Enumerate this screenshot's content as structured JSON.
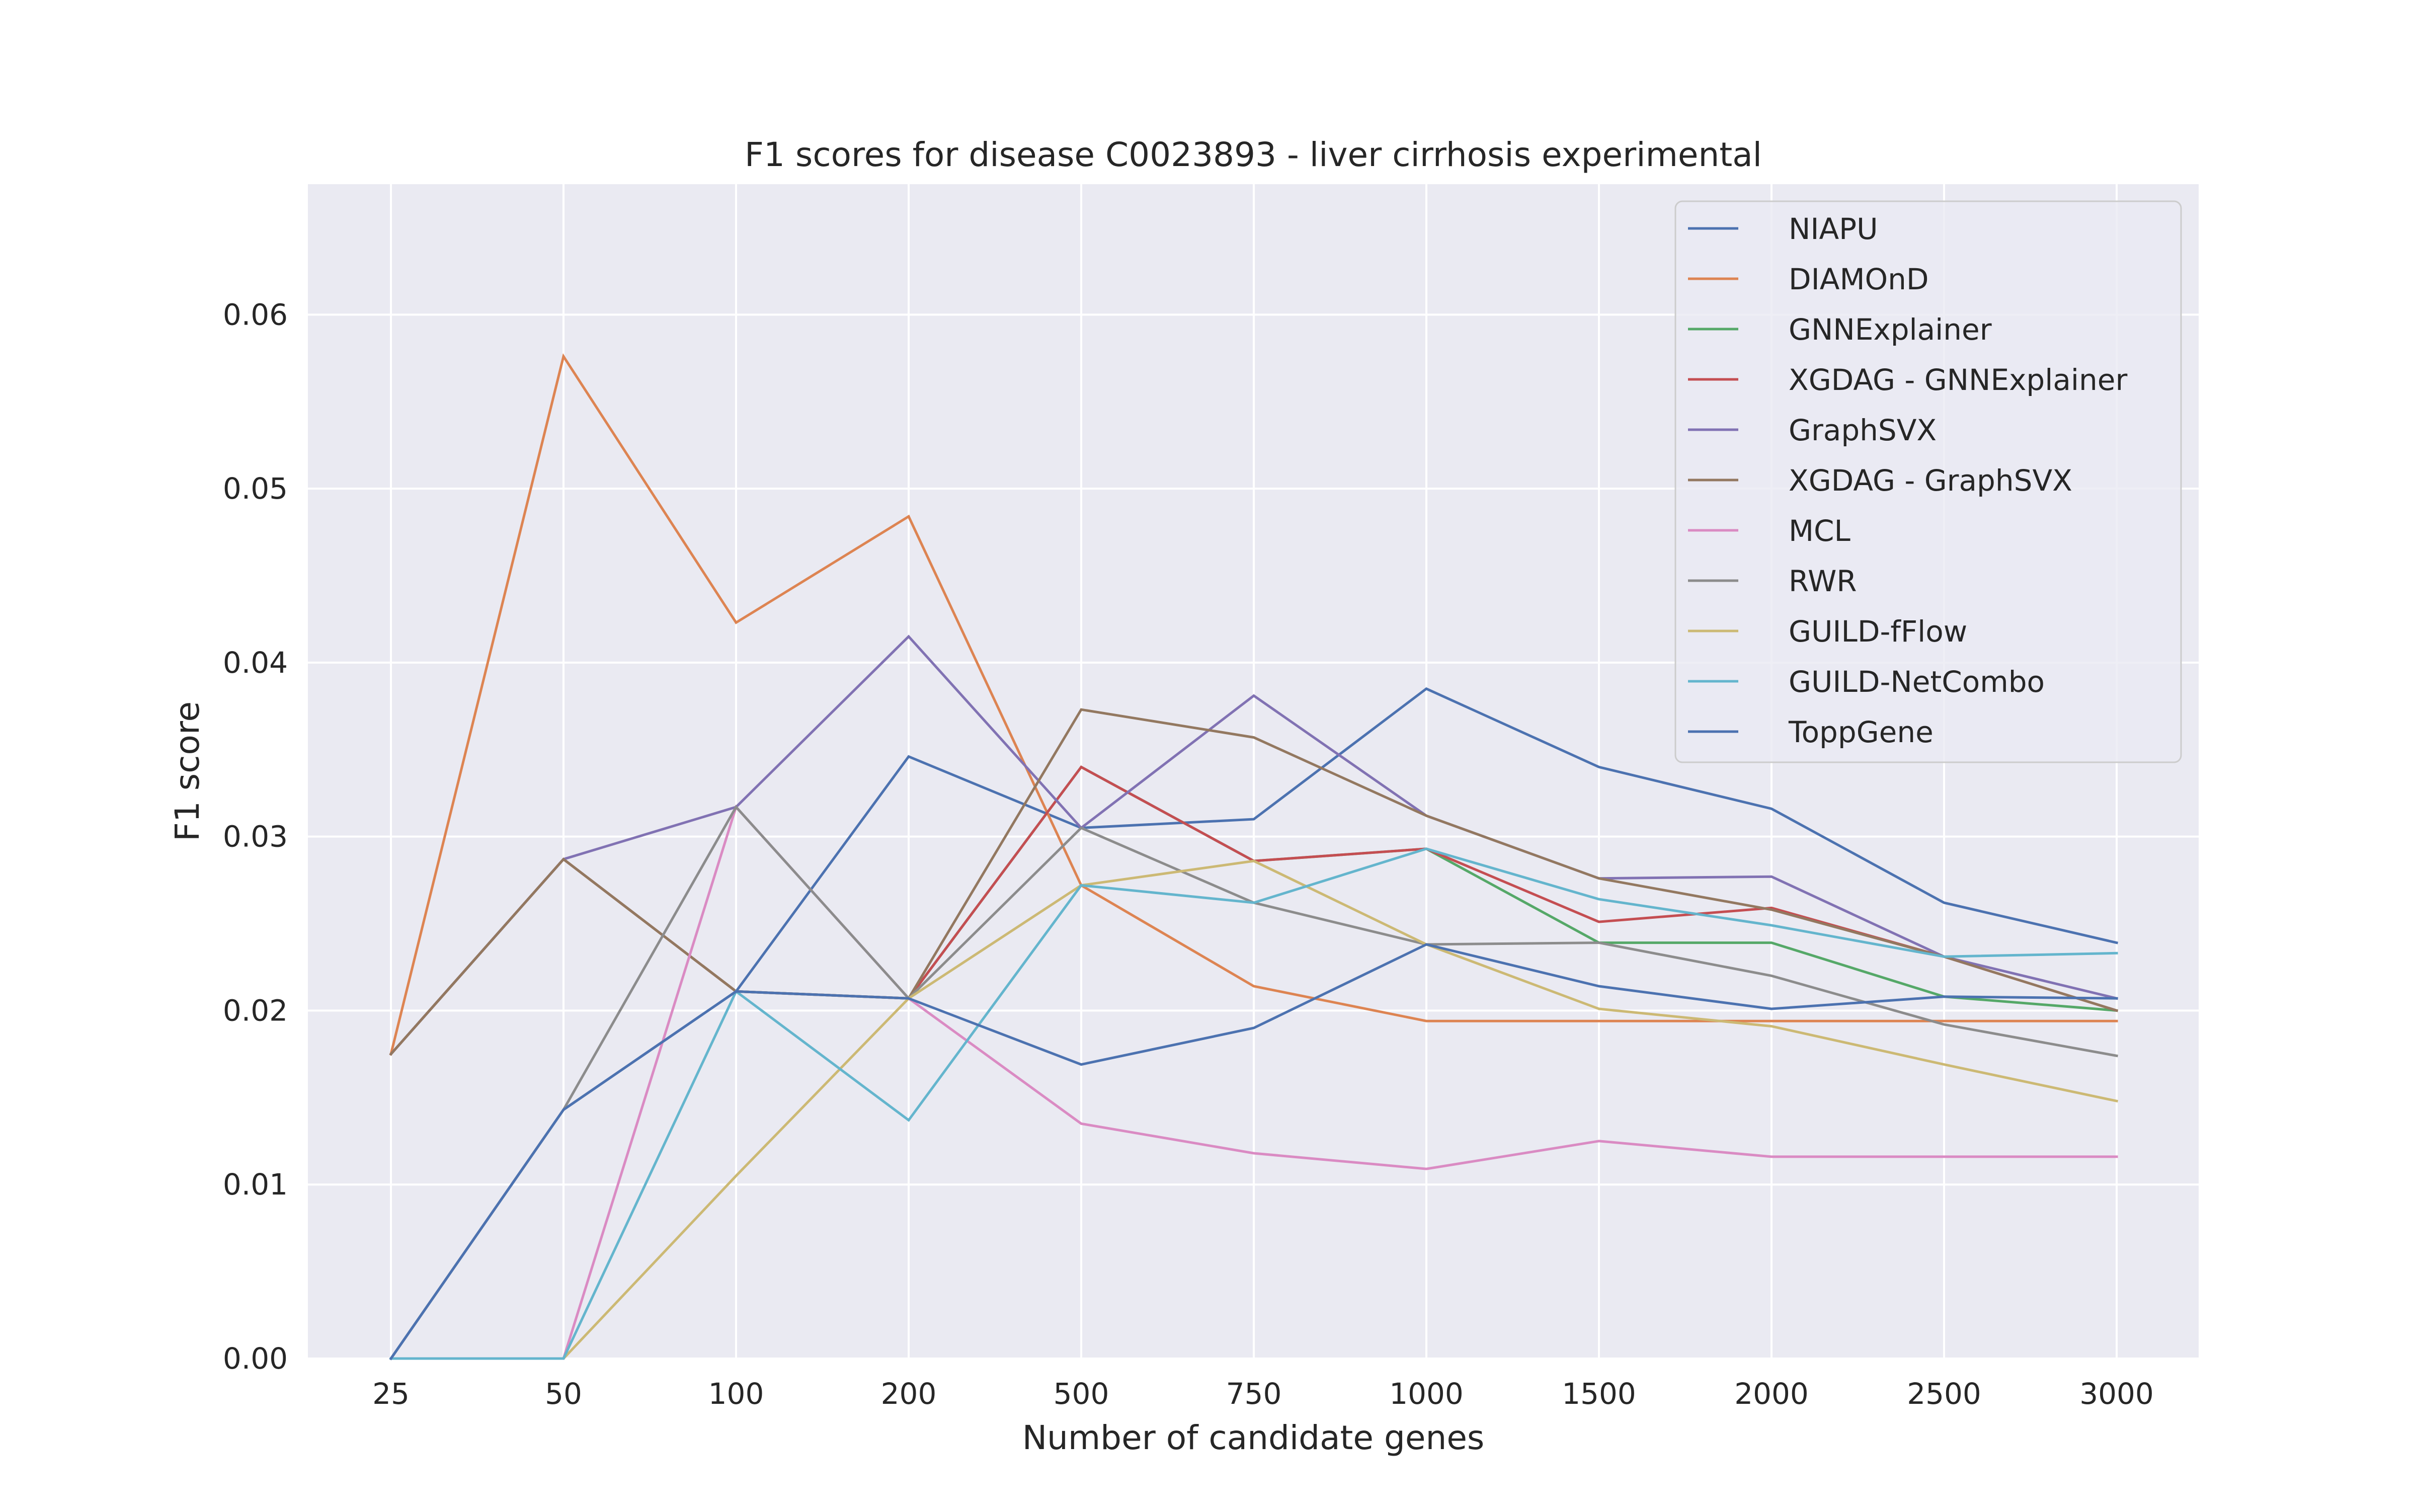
{
  "chart_data": {
    "type": "line",
    "title": "F1 scores for disease C0023893 - liver cirrhosis experimental",
    "xlabel": "Number of candidate genes",
    "ylabel": "F1 score",
    "categories": [
      "25",
      "50",
      "100",
      "200",
      "500",
      "750",
      "1000",
      "1500",
      "2000",
      "2500",
      "3000"
    ],
    "ylim": [
      0,
      0.0675
    ],
    "yticks": [
      "0.00",
      "0.01",
      "0.02",
      "0.03",
      "0.04",
      "0.05",
      "0.06"
    ],
    "grid": true,
    "legend_position": "top-right",
    "series": [
      {
        "name": "NIAPU",
        "color": "#4c72b0",
        "values": [
          0.0,
          0.0143,
          0.0211,
          0.0346,
          0.0305,
          0.031,
          0.0385,
          0.034,
          0.0316,
          0.0262,
          0.0239
        ]
      },
      {
        "name": "DIAMOnD",
        "color": "#dd8452",
        "values": [
          0.0175,
          0.0576,
          0.0423,
          0.0484,
          0.0272,
          0.0214,
          0.0194,
          0.0194,
          0.0194,
          0.0194,
          0.0194
        ]
      },
      {
        "name": "GNNExplainer",
        "color": "#55a868",
        "values": [
          0.0175,
          0.0287,
          0.0211,
          0.0207,
          0.034,
          0.0286,
          0.0293,
          0.0239,
          0.0239,
          0.0208,
          0.02
        ]
      },
      {
        "name": "XGDAG - GNNExplainer",
        "color": "#c44e52",
        "values": [
          0.0175,
          0.0287,
          0.0211,
          0.0207,
          0.034,
          0.0286,
          0.0293,
          0.0251,
          0.0259,
          0.0231,
          0.02
        ]
      },
      {
        "name": "GraphSVX",
        "color": "#8172b3",
        "values": [
          0.0175,
          0.0287,
          0.0317,
          0.0415,
          0.0305,
          0.0381,
          0.0312,
          0.0276,
          0.0277,
          0.0231,
          0.0207
        ]
      },
      {
        "name": "XGDAG - GraphSVX",
        "color": "#937860",
        "values": [
          0.0175,
          0.0287,
          0.0211,
          0.0207,
          0.0373,
          0.0357,
          0.0312,
          0.0276,
          0.0258,
          0.0231,
          0.02
        ]
      },
      {
        "name": "MCL",
        "color": "#da8bc3",
        "values": [
          0.0,
          0.0,
          0.0317,
          0.0207,
          0.0135,
          0.0118,
          0.0109,
          0.0125,
          0.0116,
          0.0116,
          0.0116
        ]
      },
      {
        "name": "RWR",
        "color": "#8c8c8c",
        "values": [
          0.0,
          0.0143,
          0.0317,
          0.0207,
          0.0305,
          0.0262,
          0.0238,
          0.0239,
          0.022,
          0.0192,
          0.0174
        ]
      },
      {
        "name": "GUILD-fFlow",
        "color": "#ccb974",
        "values": [
          0.0,
          0.0,
          0.0105,
          0.0207,
          0.0272,
          0.0286,
          0.0238,
          0.0201,
          0.0191,
          0.0169,
          0.0148
        ]
      },
      {
        "name": "GUILD-NetCombo",
        "color": "#64b5cd",
        "values": [
          0.0,
          0.0,
          0.0211,
          0.0137,
          0.0272,
          0.0262,
          0.0293,
          0.0264,
          0.0249,
          0.0231,
          0.0233
        ]
      },
      {
        "name": "ToppGene",
        "color": "#4c72b0",
        "values": [
          0.0,
          0.0143,
          0.0211,
          0.0207,
          0.0169,
          0.019,
          0.0238,
          0.0214,
          0.0201,
          0.0208,
          0.0207
        ]
      }
    ]
  }
}
